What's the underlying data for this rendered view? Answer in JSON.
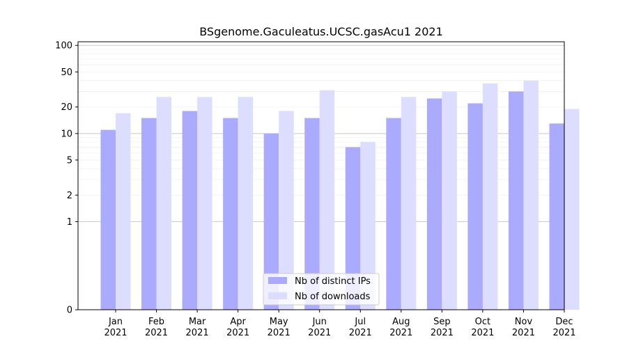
{
  "chart_data": {
    "type": "bar",
    "title": "BSgenome.Gaculeatus.UCSC.gasAcu1 2021",
    "xlabel": "",
    "ylabel": "",
    "yscale": "symlog",
    "ylim": [
      0,
      110
    ],
    "yticks": [
      0,
      1,
      2,
      5,
      10,
      20,
      50,
      100
    ],
    "ytick_labels": [
      "0",
      "1",
      "2",
      "5",
      "10",
      "20",
      "50",
      "100"
    ],
    "grid": true,
    "legend_position": "bottom-center",
    "categories": [
      "Jan\n2021",
      "Feb\n2021",
      "Mar\n2021",
      "Apr\n2021",
      "May\n2021",
      "Jun\n2021",
      "Jul\n2021",
      "Aug\n2021",
      "Sep\n2021",
      "Oct\n2021",
      "Nov\n2021",
      "Dec\n2021"
    ],
    "category_lines": [
      [
        "Jan",
        "2021"
      ],
      [
        "Feb",
        "2021"
      ],
      [
        "Mar",
        "2021"
      ],
      [
        "Apr",
        "2021"
      ],
      [
        "May",
        "2021"
      ],
      [
        "Jun",
        "2021"
      ],
      [
        "Jul",
        "2021"
      ],
      [
        "Aug",
        "2021"
      ],
      [
        "Sep",
        "2021"
      ],
      [
        "Oct",
        "2021"
      ],
      [
        "Nov",
        "2021"
      ],
      [
        "Dec",
        "2021"
      ]
    ],
    "series": [
      {
        "name": "Nb of distinct IPs",
        "color": "#aaaaff",
        "values": [
          11,
          15,
          18,
          15,
          10,
          15,
          7,
          15,
          25,
          22,
          30,
          13
        ]
      },
      {
        "name": "Nb of downloads",
        "color": "#ddddff",
        "values": [
          17,
          26,
          26,
          26,
          18,
          31,
          8,
          26,
          30,
          37,
          40,
          19
        ]
      }
    ]
  }
}
